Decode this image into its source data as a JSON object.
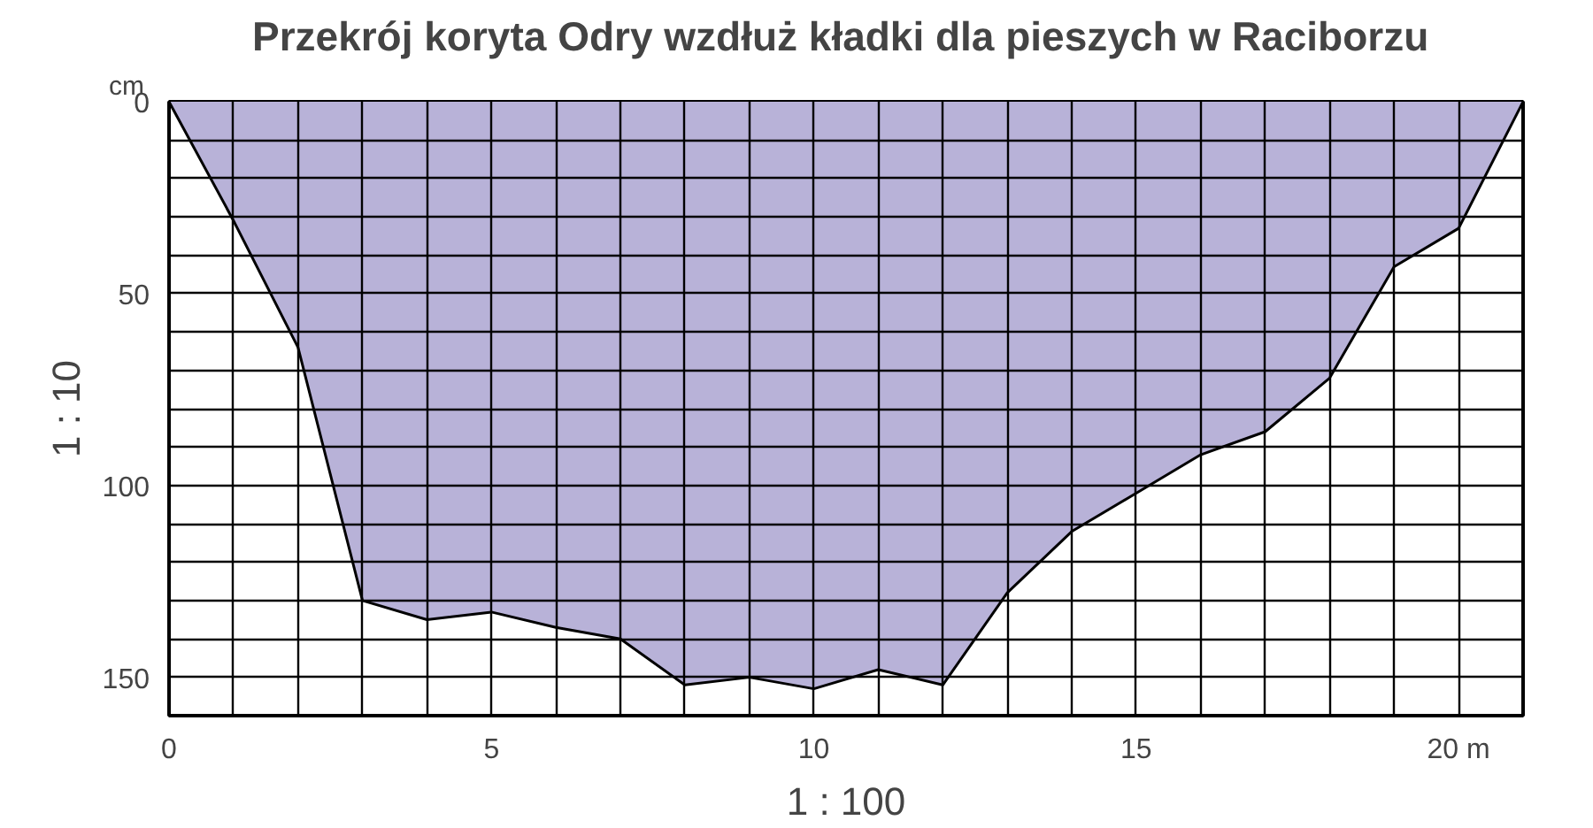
{
  "chart_data": {
    "type": "area",
    "title": "Przekrój koryta Odry  wzdłuż kładki dla pieszych w Raciborzu",
    "xlabel": "1 : 100",
    "ylabel": "1 : 10",
    "annotations": [
      "cm"
    ],
    "x": [
      0,
      1,
      2,
      3,
      4,
      5,
      6,
      7,
      8,
      9,
      10,
      11,
      12,
      13,
      14,
      15,
      16,
      17,
      18,
      19,
      20,
      21
    ],
    "values": [
      0,
      31,
      64,
      130,
      135,
      133,
      137,
      140,
      152,
      150,
      153,
      148,
      152,
      128,
      112,
      102,
      92,
      86,
      72,
      43,
      33,
      0
    ],
    "color": "#b8b2d8",
    "xlim": [
      0,
      21
    ],
    "ylim": [
      160,
      0
    ],
    "xticks": [
      0,
      {
        "value": 1,
        "label": null
      },
      {
        "value": 2,
        "label": null
      },
      {
        "value": 3,
        "label": null
      },
      {
        "value": 4,
        "label": null
      },
      5,
      {
        "value": 6,
        "label": null
      },
      {
        "value": 7,
        "label": null
      },
      {
        "value": 8,
        "label": null
      },
      {
        "value": 9,
        "label": null
      },
      10,
      {
        "value": 11,
        "label": null
      },
      {
        "value": 12,
        "label": null
      },
      {
        "value": 13,
        "label": null
      },
      {
        "value": 14,
        "label": null
      },
      15,
      {
        "value": 16,
        "label": null
      },
      {
        "value": 17,
        "label": null
      },
      {
        "value": 18,
        "label": null
      },
      {
        "value": 19,
        "label": null
      },
      {
        "value": 20,
        "label": "20 m"
      },
      {
        "value": 21,
        "label": null
      }
    ],
    "yticks": [
      0,
      {
        "value": 10,
        "label": null
      },
      {
        "value": 20,
        "label": null
      },
      {
        "value": 30,
        "label": null
      },
      {
        "value": 40,
        "label": null
      },
      50,
      {
        "value": 60,
        "label": null
      },
      {
        "value": 70,
        "label": null
      },
      {
        "value": 80,
        "label": null
      },
      {
        "value": 90,
        "label": null
      },
      100,
      {
        "value": 110,
        "label": null
      },
      {
        "value": 120,
        "label": null
      },
      {
        "value": 130,
        "label": null
      },
      {
        "value": 140,
        "label": null
      },
      150,
      {
        "value": 160,
        "label": null
      }
    ],
    "grid": true
  }
}
